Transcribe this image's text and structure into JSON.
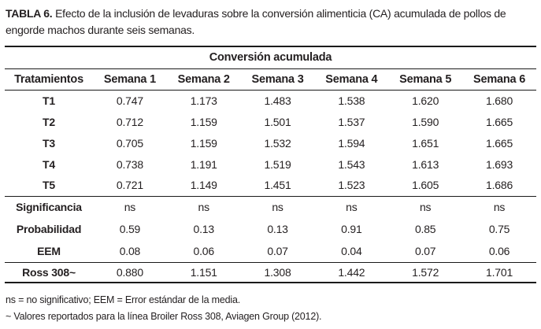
{
  "caption": {
    "label": "TABLA 6.",
    "text": " Efecto de la inclusión de levaduras sobre la conversión alimenticia (CA) acumulada de pollos de engorde machos durante seis semanas."
  },
  "table": {
    "group_header": "Conversión acumulada",
    "columns": [
      "Tratamientos",
      "Semana 1",
      "Semana 2",
      "Semana 3",
      "Semana 4",
      "Semana 5",
      "Semana 6"
    ],
    "treatment_rows": [
      {
        "label": "T1",
        "values": [
          "0.747",
          "1.173",
          "1.483",
          "1.538",
          "1.620",
          "1.680"
        ]
      },
      {
        "label": "T2",
        "values": [
          "0.712",
          "1.159",
          "1.501",
          "1.537",
          "1.590",
          "1.665"
        ]
      },
      {
        "label": "T3",
        "values": [
          "0.705",
          "1.159",
          "1.532",
          "1.594",
          "1.651",
          "1.665"
        ]
      },
      {
        "label": "T4",
        "values": [
          "0.738",
          "1.191",
          "1.519",
          "1.543",
          "1.613",
          "1.693"
        ]
      },
      {
        "label": "T5",
        "values": [
          "0.721",
          "1.149",
          "1.451",
          "1.523",
          "1.605",
          "1.686"
        ]
      }
    ],
    "stat_rows": [
      {
        "label": "Significancia",
        "values": [
          "ns",
          "ns",
          "ns",
          "ns",
          "ns",
          "ns"
        ]
      },
      {
        "label": "Probabilidad",
        "values": [
          "0.59",
          "0.13",
          "0.13",
          "0.91",
          "0.85",
          "0.75"
        ]
      },
      {
        "label": "EEM",
        "values": [
          "0.08",
          "0.06",
          "0.07",
          "0.04",
          "0.07",
          "0.06"
        ]
      }
    ],
    "reference_row": {
      "label": "Ross 308~",
      "values": [
        "0.880",
        "1.151",
        "1.308",
        "1.442",
        "1.572",
        "1.701"
      ]
    }
  },
  "footnotes": [
    "ns = no significativo; EEM = Error estándar de la media.",
    "~ Valores reportados para la línea Broiler Ross 308, Aviagen Group (2012)."
  ],
  "colors": {
    "text": "#231f20",
    "rule": "#1a1a1a",
    "background": "#ffffff"
  }
}
